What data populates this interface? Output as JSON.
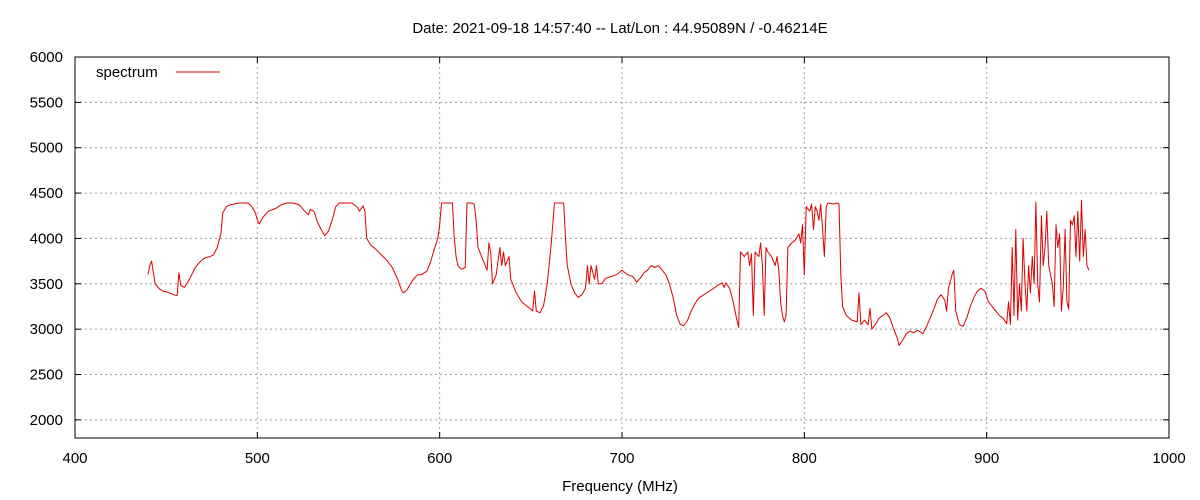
{
  "chart_data": {
    "type": "line",
    "title": "Date: 2021-09-18 14:57:40  --  Lat/Lon : 44.95089N / -0.46214E",
    "xlabel": "Frequency (MHz)",
    "ylabel": "",
    "xlim": [
      400,
      1000
    ],
    "ylim": [
      1800,
      6000
    ],
    "x_ticks": [
      400,
      500,
      600,
      700,
      800,
      900,
      1000
    ],
    "y_ticks": [
      2000,
      2500,
      3000,
      3500,
      4000,
      4500,
      5000,
      5500,
      6000
    ],
    "grid": true,
    "legend_position": "top-left",
    "series": [
      {
        "name": "spectrum",
        "color": "#dd0000",
        "points": [
          [
            440,
            3600
          ],
          [
            441,
            3700
          ],
          [
            442,
            3750
          ],
          [
            443,
            3620
          ],
          [
            444,
            3500
          ],
          [
            446,
            3450
          ],
          [
            448,
            3420
          ],
          [
            450,
            3410
          ],
          [
            452,
            3400
          ],
          [
            454,
            3380
          ],
          [
            456,
            3370
          ],
          [
            457,
            3620
          ],
          [
            458,
            3480
          ],
          [
            460,
            3460
          ],
          [
            462,
            3520
          ],
          [
            464,
            3600
          ],
          [
            466,
            3680
          ],
          [
            468,
            3730
          ],
          [
            470,
            3770
          ],
          [
            472,
            3790
          ],
          [
            474,
            3800
          ],
          [
            476,
            3820
          ],
          [
            478,
            3900
          ],
          [
            480,
            4050
          ],
          [
            481,
            4280
          ],
          [
            483,
            4350
          ],
          [
            485,
            4370
          ],
          [
            490,
            4390
          ],
          [
            495,
            4390
          ],
          [
            497,
            4350
          ],
          [
            499,
            4280
          ],
          [
            500,
            4200
          ],
          [
            501,
            4160
          ],
          [
            503,
            4230
          ],
          [
            506,
            4300
          ],
          [
            510,
            4330
          ],
          [
            513,
            4370
          ],
          [
            516,
            4390
          ],
          [
            520,
            4390
          ],
          [
            523,
            4370
          ],
          [
            526,
            4300
          ],
          [
            528,
            4260
          ],
          [
            529,
            4320
          ],
          [
            531,
            4300
          ],
          [
            533,
            4180
          ],
          [
            535,
            4100
          ],
          [
            537,
            4030
          ],
          [
            539,
            4080
          ],
          [
            541,
            4200
          ],
          [
            543,
            4350
          ],
          [
            545,
            4390
          ],
          [
            549,
            4390
          ],
          [
            552,
            4390
          ],
          [
            555,
            4340
          ],
          [
            556,
            4300
          ],
          [
            558,
            4360
          ],
          [
            559,
            4300
          ],
          [
            560,
            4000
          ],
          [
            562,
            3930
          ],
          [
            565,
            3880
          ],
          [
            568,
            3820
          ],
          [
            571,
            3760
          ],
          [
            574,
            3680
          ],
          [
            577,
            3550
          ],
          [
            579,
            3430
          ],
          [
            580,
            3400
          ],
          [
            582,
            3430
          ],
          [
            584,
            3500
          ],
          [
            586,
            3560
          ],
          [
            588,
            3600
          ],
          [
            590,
            3600
          ],
          [
            593,
            3640
          ],
          [
            595,
            3740
          ],
          [
            597,
            3880
          ],
          [
            599,
            4000
          ],
          [
            600,
            4150
          ],
          [
            601,
            4390
          ],
          [
            603,
            4390
          ],
          [
            607,
            4390
          ],
          [
            608,
            4000
          ],
          [
            609,
            3800
          ],
          [
            610,
            3700
          ],
          [
            612,
            3660
          ],
          [
            614,
            3680
          ],
          [
            615,
            4390
          ],
          [
            617,
            4390
          ],
          [
            619,
            4380
          ],
          [
            620,
            4200
          ],
          [
            621,
            3900
          ],
          [
            622,
            3850
          ],
          [
            624,
            3750
          ],
          [
            626,
            3650
          ],
          [
            627,
            3950
          ],
          [
            628,
            3850
          ],
          [
            629,
            3500
          ],
          [
            631,
            3600
          ],
          [
            633,
            3900
          ],
          [
            634,
            3700
          ],
          [
            635,
            3850
          ],
          [
            636,
            3700
          ],
          [
            638,
            3800
          ],
          [
            639,
            3550
          ],
          [
            640,
            3500
          ],
          [
            642,
            3400
          ],
          [
            645,
            3300
          ],
          [
            648,
            3250
          ],
          [
            650,
            3220
          ],
          [
            651,
            3200
          ],
          [
            652,
            3420
          ],
          [
            653,
            3200
          ],
          [
            655,
            3180
          ],
          [
            657,
            3260
          ],
          [
            659,
            3500
          ],
          [
            661,
            3900
          ],
          [
            663,
            4390
          ],
          [
            666,
            4390
          ],
          [
            668,
            4390
          ],
          [
            669,
            4000
          ],
          [
            670,
            3700
          ],
          [
            672,
            3500
          ],
          [
            674,
            3400
          ],
          [
            676,
            3350
          ],
          [
            678,
            3380
          ],
          [
            680,
            3450
          ],
          [
            681,
            3700
          ],
          [
            682,
            3500
          ],
          [
            683,
            3700
          ],
          [
            685,
            3550
          ],
          [
            686,
            3700
          ],
          [
            687,
            3500
          ],
          [
            689,
            3500
          ],
          [
            691,
            3560
          ],
          [
            694,
            3580
          ],
          [
            697,
            3600
          ],
          [
            700,
            3650
          ],
          [
            703,
            3600
          ],
          [
            706,
            3580
          ],
          [
            708,
            3520
          ],
          [
            710,
            3560
          ],
          [
            712,
            3620
          ],
          [
            714,
            3650
          ],
          [
            716,
            3700
          ],
          [
            718,
            3680
          ],
          [
            720,
            3700
          ],
          [
            722,
            3650
          ],
          [
            724,
            3600
          ],
          [
            726,
            3500
          ],
          [
            728,
            3350
          ],
          [
            730,
            3150
          ],
          [
            732,
            3050
          ],
          [
            734,
            3040
          ],
          [
            736,
            3100
          ],
          [
            738,
            3200
          ],
          [
            740,
            3280
          ],
          [
            742,
            3340
          ],
          [
            745,
            3380
          ],
          [
            748,
            3420
          ],
          [
            751,
            3460
          ],
          [
            753,
            3490
          ],
          [
            755,
            3510
          ],
          [
            756,
            3460
          ],
          [
            757,
            3510
          ],
          [
            759,
            3450
          ],
          [
            761,
            3300
          ],
          [
            763,
            3100
          ],
          [
            764,
            3020
          ],
          [
            765,
            3850
          ],
          [
            767,
            3800
          ],
          [
            769,
            3850
          ],
          [
            770,
            3700
          ],
          [
            771,
            3830
          ],
          [
            772,
            3150
          ],
          [
            773,
            3850
          ],
          [
            775,
            3800
          ],
          [
            776,
            3950
          ],
          [
            777,
            3700
          ],
          [
            778,
            3150
          ],
          [
            779,
            3900
          ],
          [
            780,
            3850
          ],
          [
            782,
            3800
          ],
          [
            784,
            3700
          ],
          [
            785,
            3800
          ],
          [
            786,
            3650
          ],
          [
            787,
            3300
          ],
          [
            788,
            3150
          ],
          [
            789,
            3080
          ],
          [
            790,
            3150
          ],
          [
            791,
            3900
          ],
          [
            793,
            3950
          ],
          [
            795,
            3980
          ],
          [
            797,
            4050
          ],
          [
            798,
            3950
          ],
          [
            799,
            4150
          ],
          [
            800,
            3600
          ],
          [
            801,
            4350
          ],
          [
            803,
            4300
          ],
          [
            804,
            4380
          ],
          [
            805,
            4100
          ],
          [
            806,
            4350
          ],
          [
            807,
            4300
          ],
          [
            808,
            4200
          ],
          [
            809,
            4380
          ],
          [
            810,
            4100
          ],
          [
            811,
            3800
          ],
          [
            812,
            4350
          ],
          [
            813,
            4390
          ],
          [
            816,
            4380
          ],
          [
            818,
            4390
          ],
          [
            819,
            4380
          ],
          [
            820,
            3600
          ],
          [
            821,
            3250
          ],
          [
            823,
            3150
          ],
          [
            826,
            3100
          ],
          [
            829,
            3080
          ],
          [
            830,
            3400
          ],
          [
            831,
            3050
          ],
          [
            833,
            3100
          ],
          [
            835,
            3050
          ],
          [
            836,
            3230
          ],
          [
            837,
            3000
          ],
          [
            839,
            3050
          ],
          [
            841,
            3120
          ],
          [
            843,
            3150
          ],
          [
            845,
            3180
          ],
          [
            847,
            3120
          ],
          [
            849,
            3000
          ],
          [
            851,
            2900
          ],
          [
            852,
            2820
          ],
          [
            854,
            2880
          ],
          [
            856,
            2950
          ],
          [
            858,
            2980
          ],
          [
            860,
            2960
          ],
          [
            862,
            2990
          ],
          [
            865,
            2950
          ],
          [
            867,
            3030
          ],
          [
            869,
            3120
          ],
          [
            871,
            3220
          ],
          [
            873,
            3330
          ],
          [
            875,
            3380
          ],
          [
            877,
            3320
          ],
          [
            878,
            3200
          ],
          [
            879,
            3450
          ],
          [
            880,
            3520
          ],
          [
            881,
            3600
          ],
          [
            882,
            3650
          ],
          [
            883,
            3200
          ],
          [
            885,
            3050
          ],
          [
            887,
            3030
          ],
          [
            889,
            3120
          ],
          [
            891,
            3250
          ],
          [
            893,
            3350
          ],
          [
            895,
            3420
          ],
          [
            897,
            3450
          ],
          [
            899,
            3420
          ],
          [
            901,
            3300
          ],
          [
            903,
            3250
          ],
          [
            905,
            3200
          ],
          [
            907,
            3150
          ],
          [
            909,
            3120
          ],
          [
            911,
            3060
          ],
          [
            912,
            3300
          ],
          [
            913,
            3050
          ],
          [
            914,
            3900
          ],
          [
            915,
            3150
          ],
          [
            916,
            4100
          ],
          [
            917,
            3100
          ],
          [
            918,
            3500
          ],
          [
            919,
            3200
          ],
          [
            920,
            4000
          ],
          [
            921,
            3500
          ],
          [
            922,
            3200
          ],
          [
            923,
            3700
          ],
          [
            924,
            3400
          ],
          [
            925,
            3800
          ],
          [
            926,
            3500
          ],
          [
            927,
            4400
          ],
          [
            928,
            3500
          ],
          [
            929,
            3300
          ],
          [
            930,
            4250
          ],
          [
            931,
            3700
          ],
          [
            932,
            3900
          ],
          [
            933,
            4300
          ],
          [
            934,
            3700
          ],
          [
            935,
            3600
          ],
          [
            936,
            3500
          ],
          [
            937,
            3250
          ],
          [
            938,
            4150
          ],
          [
            939,
            3900
          ],
          [
            940,
            4050
          ],
          [
            941,
            3200
          ],
          [
            942,
            3450
          ],
          [
            943,
            4100
          ],
          [
            944,
            3300
          ],
          [
            945,
            3220
          ],
          [
            946,
            4200
          ],
          [
            947,
            4150
          ],
          [
            948,
            4250
          ],
          [
            949,
            3800
          ],
          [
            950,
            4300
          ],
          [
            951,
            3750
          ],
          [
            952,
            4420
          ],
          [
            953,
            3800
          ],
          [
            954,
            4100
          ],
          [
            955,
            3700
          ],
          [
            956,
            3650
          ]
        ]
      }
    ]
  }
}
